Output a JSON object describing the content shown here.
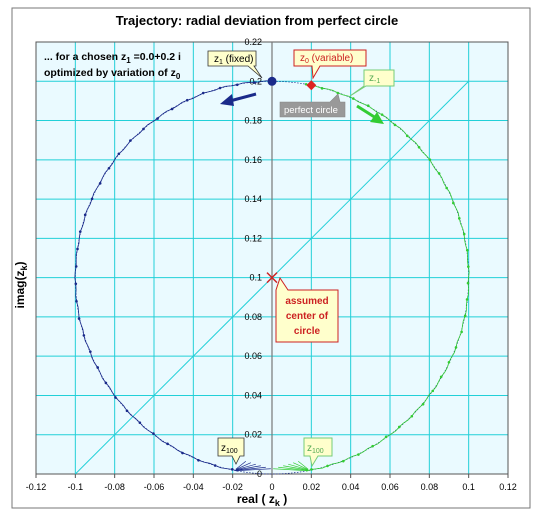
{
  "chart_data": {
    "type": "scatter",
    "title": "Trajectory: radial deviation from perfect circle",
    "subtitle_line1": "... for a chosen z",
    "subtitle_sub1": "1",
    "subtitle_line1_rest": " =0.0+0.2 i",
    "subtitle_line2": "optimized by variation of z",
    "subtitle_sub2": "0",
    "xlabel": "real ( z",
    "xlabel_sub": "k",
    "xlabel_end": ")",
    "ylabel": "imag(z",
    "ylabel_sub": "k",
    "ylabel_end": ")",
    "xlim": [
      -0.12,
      0.12
    ],
    "ylim": [
      0,
      0.22
    ],
    "x_ticks": [
      "-0.12",
      "-0.1",
      "-0.08",
      "-0.06",
      "-0.04",
      "-0.02",
      "0",
      "0.02",
      "0.04",
      "0.06",
      "0.08",
      "0.1",
      "0.12"
    ],
    "y_ticks": [
      "0",
      "0.02",
      "0.04",
      "0.06",
      "0.08",
      "0.1",
      "0.12",
      "0.14",
      "0.16",
      "0.18",
      "0.2",
      "0.22"
    ],
    "grid": true,
    "circle_center": [
      0,
      0.1
    ],
    "circle_radius": 0.1,
    "diagonal_line": [
      [
        -0.1,
        0
      ],
      [
        0.1,
        0.2
      ]
    ],
    "series": [
      {
        "color": "#1a2a8a",
        "theta_start_deg": 90,
        "theta_end_deg": 260,
        "n_points": 100
      },
      {
        "color": "#33cc33",
        "theta_start_deg": 80,
        "theta_end_deg": -80,
        "n_points": 100
      }
    ],
    "points": [
      {
        "id": "z1",
        "x": 0,
        "y": 0.2,
        "color": "#1a2a8a",
        "shape": "circle"
      },
      {
        "id": "z0",
        "x": 0.02,
        "y": 0.198,
        "color": "#dd2222",
        "shape": "diamond"
      },
      {
        "id": "center",
        "x": 0,
        "y": 0.1,
        "color": "#cc2222",
        "shape": "x"
      }
    ],
    "annotations": {
      "z1_fixed": {
        "text": "z",
        "sub": "1",
        "rest": " (fixed)"
      },
      "z0_variable": {
        "text": "z",
        "sub": "0",
        "rest": " (variable)"
      },
      "z_minus1": {
        "text": "z",
        "sub": "-1"
      },
      "perfect_circle": "perfect circle",
      "assumed_center": [
        "assumed",
        "center of",
        "circle"
      ],
      "z100_blue": {
        "text": "z",
        "sub": "100"
      },
      "z100_green": {
        "text": "z",
        "sub": "100"
      }
    },
    "colors": {
      "plot_bg": "#eafaff",
      "grid": "#22d0d8",
      "blue": "#1a2a8a",
      "green": "#33cc33",
      "callout_fill": "#ffffcc",
      "callout_red_border": "#cc2222",
      "callout_green_border": "#77cc77",
      "callout_grey_fill": "#999999"
    }
  }
}
